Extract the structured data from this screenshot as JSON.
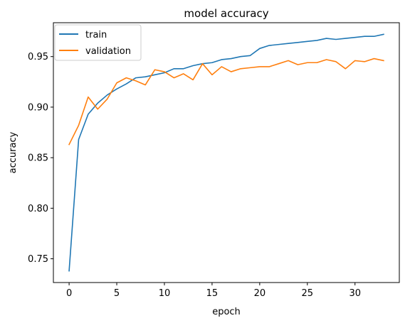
{
  "chart_data": {
    "type": "line",
    "title": "model accuracy",
    "xlabel": "epoch",
    "ylabel": "accuracy",
    "xlim": [
      -1.65,
      34.65
    ],
    "ylim": [
      0.7265,
      0.9835
    ],
    "xticks": [
      0,
      5,
      10,
      15,
      20,
      25,
      30
    ],
    "xtick_labels": [
      "0",
      "5",
      "10",
      "15",
      "20",
      "25",
      "30"
    ],
    "yticks": [
      0.75,
      0.8,
      0.85,
      0.9,
      0.95
    ],
    "ytick_labels": [
      "0.75",
      "0.80",
      "0.85",
      "0.90",
      "0.95"
    ],
    "grid": false,
    "legend_position": "top-left",
    "x": [
      0,
      1,
      2,
      3,
      4,
      5,
      6,
      7,
      8,
      9,
      10,
      11,
      12,
      13,
      14,
      15,
      16,
      17,
      18,
      19,
      20,
      21,
      22,
      23,
      24,
      25,
      26,
      27,
      28,
      29,
      30,
      31,
      32,
      33
    ],
    "series": [
      {
        "name": "train",
        "color": "#1f77b4",
        "values": [
          0.738,
          0.868,
          0.893,
          0.904,
          0.912,
          0.918,
          0.923,
          0.929,
          0.93,
          0.932,
          0.934,
          0.938,
          0.938,
          0.941,
          0.943,
          0.944,
          0.947,
          0.948,
          0.95,
          0.951,
          0.958,
          0.961,
          0.962,
          0.963,
          0.964,
          0.965,
          0.966,
          0.968,
          0.967,
          0.968,
          0.969,
          0.97,
          0.97,
          0.972
        ]
      },
      {
        "name": "validation",
        "color": "#ff7f0e",
        "values": [
          0.863,
          0.882,
          0.91,
          0.898,
          0.908,
          0.924,
          0.929,
          0.926,
          0.922,
          0.937,
          0.935,
          0.929,
          0.933,
          0.927,
          0.943,
          0.932,
          0.94,
          0.935,
          0.938,
          0.939,
          0.94,
          0.94,
          0.943,
          0.946,
          0.942,
          0.944,
          0.944,
          0.947,
          0.945,
          0.938,
          0.946,
          0.945,
          0.948,
          0.946
        ]
      }
    ]
  }
}
